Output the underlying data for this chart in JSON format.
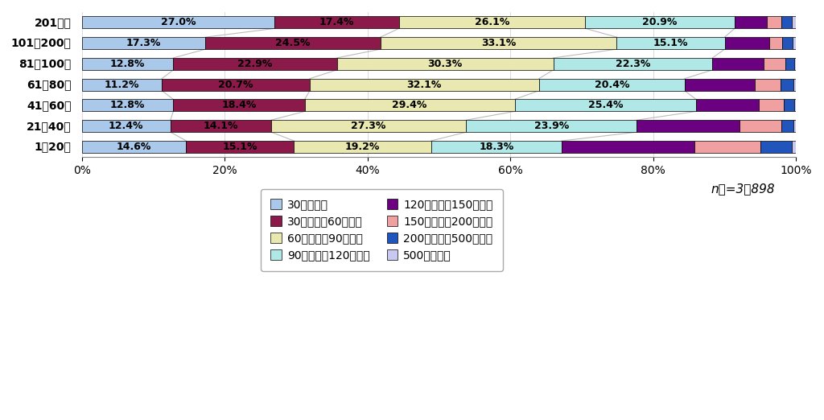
{
  "categories": [
    "201戸～",
    "101～200戸",
    "81～100戸",
    "61～80戸",
    "41～60戸",
    "21～40戸",
    "1～20戸"
  ],
  "series": [
    {
      "label": "30万円未満",
      "color": "#aac8ea",
      "values": [
        27.0,
        17.3,
        12.8,
        11.2,
        12.8,
        12.4,
        14.6
      ]
    },
    {
      "label": "30万以上～60万未満",
      "color": "#8b1a4a",
      "values": [
        17.4,
        24.5,
        22.9,
        20.7,
        18.4,
        14.1,
        15.1
      ]
    },
    {
      "label": "60万以上～90万未満",
      "color": "#e8e8b0",
      "values": [
        26.1,
        33.1,
        30.3,
        32.1,
        29.4,
        27.3,
        19.2
      ]
    },
    {
      "label": "90万以上～120万未満",
      "color": "#b0e8e8",
      "values": [
        20.9,
        15.1,
        22.3,
        20.4,
        25.4,
        23.9,
        18.3
      ]
    },
    {
      "label": "120万以上～150万未満",
      "color": "#6b0080",
      "values": [
        4.5,
        6.2,
        7.2,
        9.8,
        8.8,
        14.4,
        18.6
      ]
    },
    {
      "label": "150万以上～200万未満",
      "color": "#f0a0a0",
      "values": [
        2.0,
        1.8,
        3.0,
        3.6,
        3.5,
        5.8,
        9.2
      ]
    },
    {
      "label": "200万以上～500万未満",
      "color": "#2255bb",
      "values": [
        1.5,
        1.5,
        1.2,
        1.8,
        1.4,
        1.7,
        4.4
      ]
    },
    {
      "label": "500万円以上",
      "color": "#c8c8f0",
      "values": [
        0.6,
        0.5,
        0.3,
        0.4,
        0.3,
        0.4,
        0.6
      ]
    }
  ],
  "note": "n／=3，898",
  "xlim": [
    0,
    100
  ],
  "background_color": "#ffffff",
  "bar_height": 0.58,
  "fontsize_tick": 10,
  "fontsize_label": 9,
  "fontsize_legend": 9.5,
  "fontsize_note": 11,
  "label_threshold": 5.0,
  "show_label_series": [
    0,
    1,
    2,
    3
  ],
  "grid_color": "#cccccc",
  "line_color": "#bbbbbb",
  "line_lw": 0.8,
  "legend_order": [
    0,
    1,
    2,
    3,
    4,
    5,
    6,
    7
  ]
}
